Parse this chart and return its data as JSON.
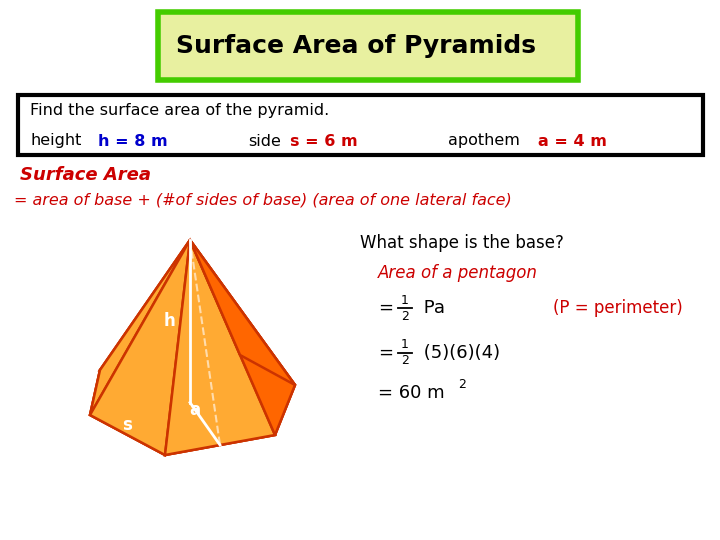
{
  "title": "Surface Area of Pyramids",
  "title_bg": "#e8f0a0",
  "title_border": "#44cc00",
  "title_fontsize": 18,
  "problem_box_text": "Find the surface area of the pyramid.",
  "height_label": "height",
  "height_val": "h = 8 m",
  "side_label": "side",
  "side_val": "s = 6 m",
  "apothem_label": "apothem",
  "apothem_val": "a = 4 m",
  "surface_area_label": "Surface Area",
  "formula_line": "= area of base + (#of sides of base) (area of one lateral face)",
  "what_shape": "What shape is the base?",
  "area_pentagon": "Area of a pentagon",
  "paren_note": "(P = perimeter)",
  "red": "#cc0000",
  "blue": "#0000cc",
  "dark_red": "#990000",
  "black": "#000000",
  "orange_fill": "#ff8c00",
  "orange_mid": "#ff6600",
  "orange_dark": "#cc3300",
  "orange_light": "#ffaa33",
  "white": "#ffffff",
  "bg": "#ffffff"
}
